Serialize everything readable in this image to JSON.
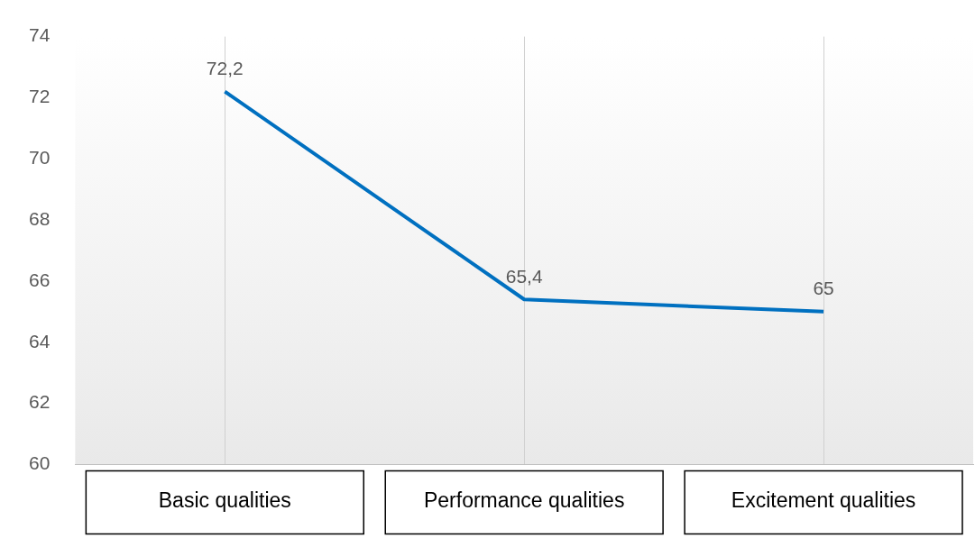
{
  "chart_data": {
    "type": "line",
    "categories": [
      "Basic qualities",
      "Performance qualities",
      "Excitement qualities"
    ],
    "values": [
      72.2,
      65.4,
      65
    ],
    "value_labels": [
      "72,2",
      "65,4",
      "65"
    ],
    "color": "#0070c0",
    "ylim": [
      60,
      74
    ],
    "yticks": [
      60,
      62,
      64,
      66,
      68,
      70,
      72,
      74
    ],
    "grid": "x",
    "marker": "none"
  }
}
